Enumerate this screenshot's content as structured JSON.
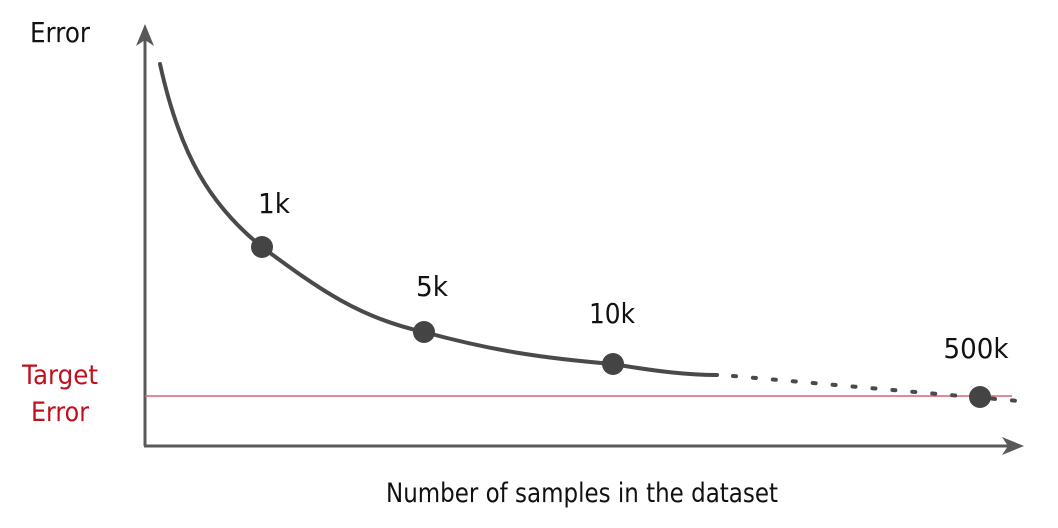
{
  "y_axis_label": "Error",
  "x_axis_label": "Number of samples in the dataset",
  "target": {
    "line1": "Target",
    "line2": "Error",
    "color": "#c0101f"
  },
  "points": [
    {
      "label": "1k"
    },
    {
      "label": "5k"
    },
    {
      "label": "10k"
    },
    {
      "label": "500k"
    }
  ],
  "colors": {
    "axis": "#595959",
    "curve": "#4a4a4a",
    "point": "#444444",
    "target_line": "#d9626f"
  }
}
